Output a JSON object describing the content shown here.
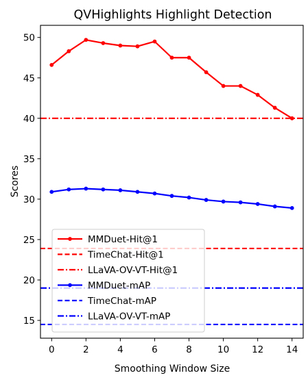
{
  "chart_data": {
    "type": "line",
    "title": "QVHighlights Highlight Detection",
    "xlabel": "Smoothing Window Size",
    "ylabel": "Scores",
    "xlim": [
      -0.65,
      14.65
    ],
    "ylim": [
      12.8,
      51.5
    ],
    "xticks": [
      0,
      2,
      4,
      6,
      8,
      10,
      12,
      14
    ],
    "yticks": [
      15,
      20,
      25,
      30,
      35,
      40,
      45,
      50
    ],
    "grid": false,
    "legend_position": "lower-left",
    "x": [
      0,
      1,
      2,
      3,
      4,
      5,
      6,
      7,
      8,
      9,
      10,
      11,
      12,
      13,
      14
    ],
    "series": [
      {
        "name": "MMDuet-Hit@1",
        "kind": "line-markers",
        "color": "#ff0000",
        "dash": "solid",
        "values": [
          46.6,
          48.3,
          49.7,
          49.3,
          49.0,
          48.9,
          49.5,
          47.5,
          47.5,
          45.7,
          44.0,
          44.0,
          42.9,
          41.3,
          40.0
        ]
      },
      {
        "name": "TimeChat-Hit@1",
        "kind": "hline",
        "color": "#ff0000",
        "dash": "dashed",
        "value": 23.9
      },
      {
        "name": "LLaVA-OV-VT-Hit@1",
        "kind": "hline",
        "color": "#ff0000",
        "dash": "dashdot",
        "value": 40.0
      },
      {
        "name": "MMDuet-mAP",
        "kind": "line-markers",
        "color": "#0000ff",
        "dash": "solid",
        "values": [
          30.9,
          31.2,
          31.3,
          31.2,
          31.1,
          30.9,
          30.7,
          30.4,
          30.2,
          29.9,
          29.7,
          29.6,
          29.4,
          29.1,
          28.9
        ]
      },
      {
        "name": "TimeChat-mAP",
        "kind": "hline",
        "color": "#0000ff",
        "dash": "dashed",
        "value": 14.5
      },
      {
        "name": "LLaVA-OV-VT-mAP",
        "kind": "hline",
        "color": "#0000ff",
        "dash": "dashdot",
        "value": 19.0
      }
    ]
  }
}
